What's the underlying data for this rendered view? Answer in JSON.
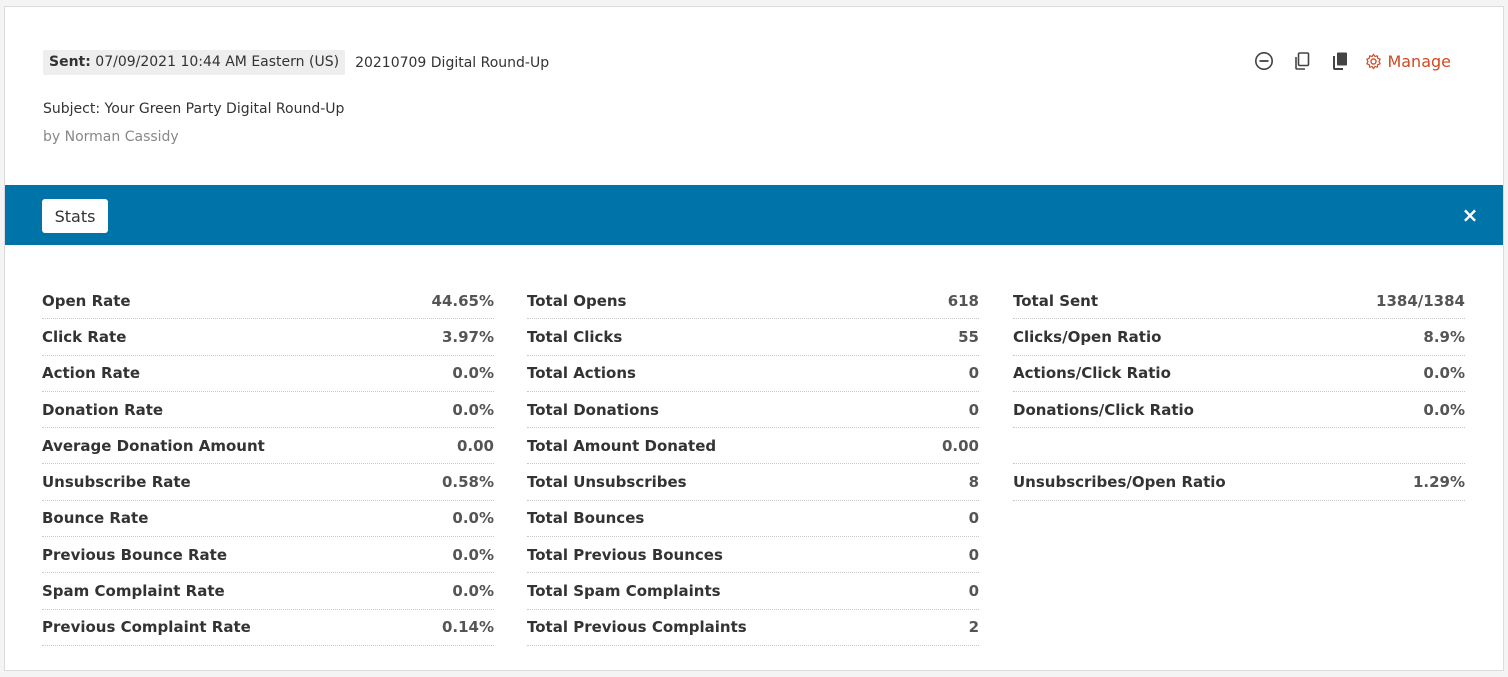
{
  "header": {
    "sent_prefix": "Sent:",
    "sent_datetime": "07/09/2021 10:44 AM Eastern (US)",
    "campaign_name": "20210709 Digital Round-Up",
    "subject": "Subject: Your Green Party Digital Round-Up",
    "author": "by Norman Cassidy"
  },
  "toolbar": {
    "manage_label": "Manage",
    "icons": [
      "minus-circle-icon",
      "copy-icon",
      "duplicate-icon",
      "gear-icon"
    ],
    "accent_color": "#d04a22"
  },
  "stats_bar": {
    "button_label": "Stats",
    "close_glyph": "×",
    "color": "#0073a8"
  },
  "stats": {
    "col1": [
      {
        "label": "Open Rate",
        "value": "44.65%"
      },
      {
        "label": "Click Rate",
        "value": "3.97%"
      },
      {
        "label": "Action Rate",
        "value": "0.0%"
      },
      {
        "label": "Donation Rate",
        "value": "0.0%"
      },
      {
        "label": "Average Donation Amount",
        "value": "0.00"
      },
      {
        "label": "Unsubscribe Rate",
        "value": "0.58%"
      },
      {
        "label": "Bounce Rate",
        "value": "0.0%"
      },
      {
        "label": "Previous Bounce Rate",
        "value": "0.0%"
      },
      {
        "label": "Spam Complaint Rate",
        "value": "0.0%"
      },
      {
        "label": "Previous Complaint Rate",
        "value": "0.14%"
      }
    ],
    "col2": [
      {
        "label": "Total Opens",
        "value": "618"
      },
      {
        "label": "Total Clicks",
        "value": "55"
      },
      {
        "label": "Total Actions",
        "value": "0"
      },
      {
        "label": "Total Donations",
        "value": "0"
      },
      {
        "label": "Total Amount Donated",
        "value": "0.00"
      },
      {
        "label": "Total Unsubscribes",
        "value": "8"
      },
      {
        "label": "Total Bounces",
        "value": "0"
      },
      {
        "label": "Total Previous Bounces",
        "value": "0"
      },
      {
        "label": "Total Spam Complaints",
        "value": "0"
      },
      {
        "label": "Total Previous Complaints",
        "value": "2"
      }
    ],
    "col3": [
      {
        "label": "Total Sent",
        "value": "1384/1384"
      },
      {
        "label": "Clicks/Open Ratio",
        "value": "8.9%"
      },
      {
        "label": "Actions/Click Ratio",
        "value": "0.0%"
      },
      {
        "label": "Donations/Click Ratio",
        "value": "0.0%"
      },
      {
        "label": "",
        "value": ""
      },
      {
        "label": "Unsubscribes/Open Ratio",
        "value": "1.29%"
      }
    ]
  }
}
